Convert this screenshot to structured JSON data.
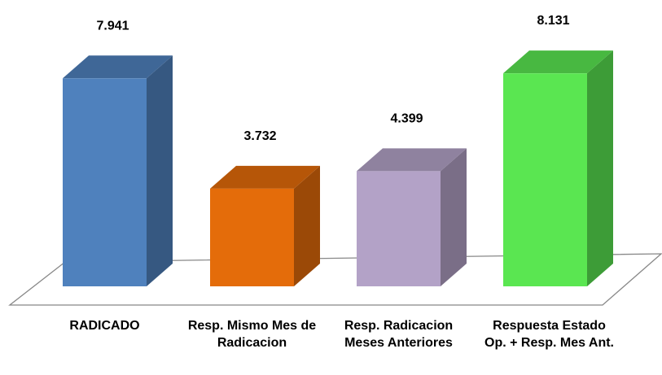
{
  "chart_data": {
    "type": "bar3d",
    "categories": [
      "RADICADO",
      "Resp. Mismo Mes de Radicacion",
      "Resp. Radicacion Meses Anteriores",
      "Respuesta Estado Op. + Resp. Mes Ant."
    ],
    "values": [
      7.941,
      3.732,
      4.399,
      8.131
    ],
    "colors": [
      "#4f81bd",
      "#e46c0a",
      "#b3a2c7",
      "#5ae651"
    ]
  }
}
